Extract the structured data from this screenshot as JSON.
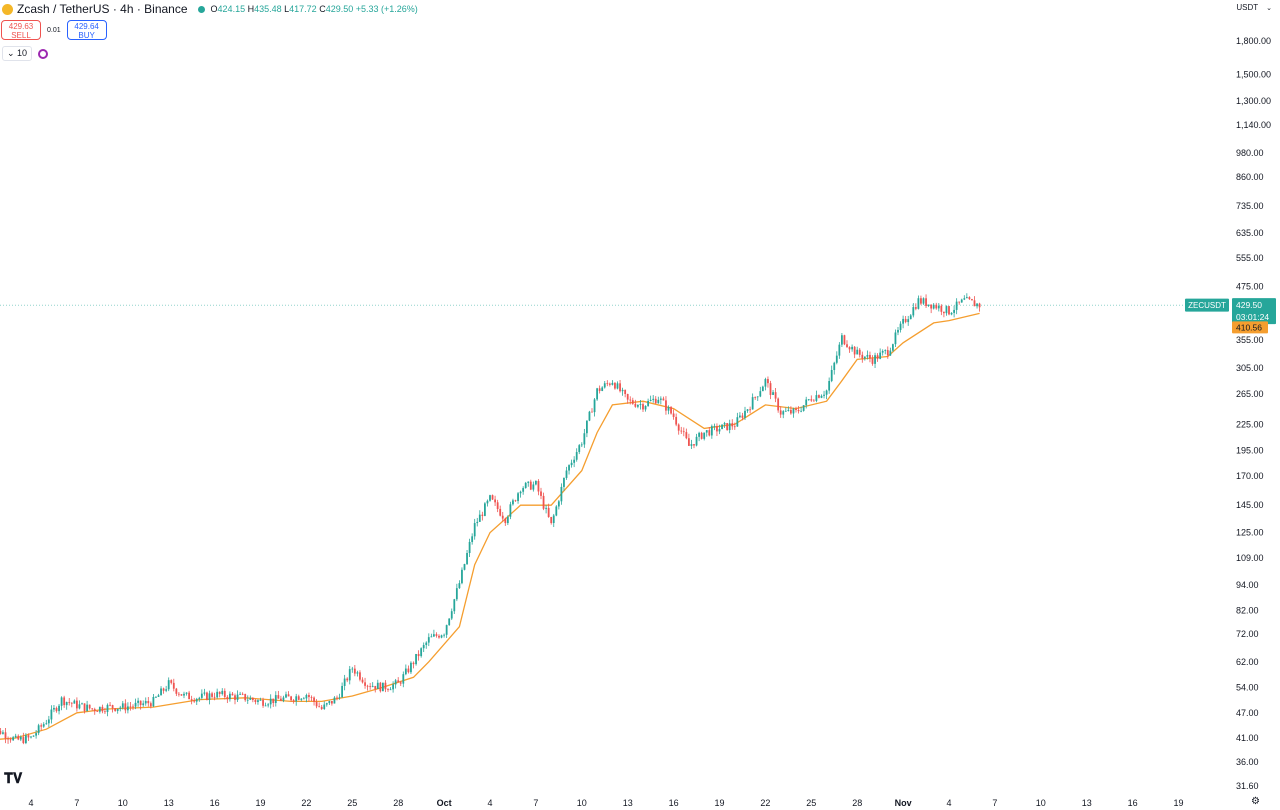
{
  "header": {
    "title": "Zcash / TetherUS · 4h · Binance",
    "ohlc": {
      "o_label": "O",
      "o": "424.15",
      "h_label": "H",
      "h": "435.48",
      "l_label": "L",
      "l": "417.72",
      "c_label": "C",
      "c": "429.50",
      "change": "+5.33 (+1.26%)"
    }
  },
  "trade": {
    "sell_price": "429.63",
    "sell_label": "SELL",
    "spread": "0.01",
    "buy_price": "429.64",
    "buy_label": "BUY"
  },
  "indicator": {
    "length": "10"
  },
  "currency_selector": {
    "label": "USDT"
  },
  "symbol_tag": "ZECUSDT",
  "price_tag": {
    "price": "429.50",
    "countdown": "03:01:24"
  },
  "ma_tag": "410.56",
  "colors": {
    "up": "#26a69a",
    "down": "#ef5350",
    "ma": "#f59e2f",
    "accent": "#2962ff"
  },
  "chart_data": {
    "type": "candlestick",
    "yscale": "log",
    "ylim": [
      31.6,
      2040
    ],
    "y_ticks": [
      "1,800.00",
      "1,500.00",
      "1,300.00",
      "1,140.00",
      "980.00",
      "860.00",
      "735.00",
      "635.00",
      "555.00",
      "475.00",
      "355.00",
      "305.00",
      "265.00",
      "225.00",
      "195.00",
      "170.00",
      "145.00",
      "125.00",
      "109.00",
      "94.00",
      "82.00",
      "72.00",
      "62.00",
      "54.00",
      "47.00",
      "41.00",
      "36.00",
      "31.60"
    ],
    "x_ticks": [
      "4",
      "7",
      "10",
      "13",
      "16",
      "19",
      "22",
      "25",
      "28",
      "Oct",
      "4",
      "7",
      "10",
      "13",
      "16",
      "19",
      "22",
      "25",
      "28",
      "Nov",
      "4",
      "7",
      "10",
      "13",
      "16",
      "19"
    ],
    "current_price": 429.5,
    "ma_last": 410.56,
    "series": [
      {
        "name": "price",
        "type": "candle",
        "points": [
          [
            "Sep 1",
            41.0
          ],
          [
            "Sep 2",
            42.5
          ],
          [
            "Sep 3",
            40.5
          ],
          [
            "Sep 4",
            41.0
          ],
          [
            "Sep 5",
            45.0
          ],
          [
            "Sep 6",
            50.5
          ],
          [
            "Sep 7",
            49.0
          ],
          [
            "Sep 8",
            48.0
          ],
          [
            "Sep 9",
            48.5
          ],
          [
            "Sep 10",
            48.5
          ],
          [
            "Sep 11",
            49.0
          ],
          [
            "Sep 12",
            50.0
          ],
          [
            "Sep 13",
            55.0
          ],
          [
            "Sep 14",
            51.5
          ],
          [
            "Sep 15",
            51.0
          ],
          [
            "Sep 16",
            52.0
          ],
          [
            "Sep 17",
            51.5
          ],
          [
            "Sep 18",
            51.0
          ],
          [
            "Sep 19",
            50.0
          ],
          [
            "Sep 20",
            50.5
          ],
          [
            "Sep 21",
            51.0
          ],
          [
            "Sep 22",
            52.0
          ],
          [
            "Sep 23",
            48.0
          ],
          [
            "Sep 24",
            51.0
          ],
          [
            "Sep 25",
            60.0
          ],
          [
            "Sep 26",
            55.0
          ],
          [
            "Sep 27",
            54.0
          ],
          [
            "Sep 28",
            55.0
          ],
          [
            "Sep 29",
            62.0
          ],
          [
            "Sep 30",
            70.0
          ],
          [
            "Oct 1",
            73.0
          ],
          [
            "Oct 2",
            95.0
          ],
          [
            "Oct 3",
            130.0
          ],
          [
            "Oct 4",
            150.0
          ],
          [
            "Oct 5",
            135.0
          ],
          [
            "Oct 6",
            160.0
          ],
          [
            "Oct 7",
            162.0
          ],
          [
            "Oct 8",
            130.0
          ],
          [
            "Oct 9",
            175.0
          ],
          [
            "Oct 10",
            205.0
          ],
          [
            "Oct 11",
            270.0
          ],
          [
            "Oct 12",
            285.0
          ],
          [
            "Oct 13",
            255.0
          ],
          [
            "Oct 14",
            250.0
          ],
          [
            "Oct 15",
            260.0
          ],
          [
            "Oct 16",
            235.0
          ],
          [
            "Oct 17",
            200.0
          ],
          [
            "Oct 18",
            215.0
          ],
          [
            "Oct 19",
            220.0
          ],
          [
            "Oct 20",
            225.0
          ],
          [
            "Oct 21",
            250.0
          ],
          [
            "Oct 22",
            285.0
          ],
          [
            "Oct 23",
            240.0
          ],
          [
            "Oct 24",
            240.0
          ],
          [
            "Oct 25",
            260.0
          ],
          [
            "Oct 26",
            270.0
          ],
          [
            "Oct 27",
            360.0
          ],
          [
            "Oct 28",
            330.0
          ],
          [
            "Oct 29",
            320.0
          ],
          [
            "Oct 30",
            335.0
          ],
          [
            "Oct 31",
            390.0
          ],
          [
            "Nov 1",
            440.0
          ],
          [
            "Nov 2",
            430.0
          ],
          [
            "Nov 3",
            415.0
          ],
          [
            "Nov 4",
            440.0
          ],
          [
            "Nov 5",
            429.5
          ]
        ]
      },
      {
        "name": "moving average",
        "type": "line",
        "points": [
          [
            "Sep 1",
            40.5
          ],
          [
            "Sep 3",
            41.0
          ],
          [
            "Sep 5",
            43.0
          ],
          [
            "Sep 7",
            47.0
          ],
          [
            "Sep 9",
            48.0
          ],
          [
            "Sep 12",
            48.5
          ],
          [
            "Sep 15",
            50.5
          ],
          [
            "Sep 18",
            51.0
          ],
          [
            "Sep 21",
            50.0
          ],
          [
            "Sep 23",
            50.0
          ],
          [
            "Sep 25",
            51.5
          ],
          [
            "Sep 27",
            54.0
          ],
          [
            "Sep 29",
            57.0
          ],
          [
            "Sep 30",
            62.0
          ],
          [
            "Oct 2",
            75.0
          ],
          [
            "Oct 3",
            105.0
          ],
          [
            "Oct 4",
            125.0
          ],
          [
            "Oct 6",
            145.0
          ],
          [
            "Oct 8",
            145.0
          ],
          [
            "Oct 10",
            175.0
          ],
          [
            "Oct 11",
            215.0
          ],
          [
            "Oct 12",
            250.0
          ],
          [
            "Oct 14",
            255.0
          ],
          [
            "Oct 16",
            245.0
          ],
          [
            "Oct 18",
            220.0
          ],
          [
            "Oct 20",
            225.0
          ],
          [
            "Oct 22",
            250.0
          ],
          [
            "Oct 24",
            245.0
          ],
          [
            "Oct 26",
            255.0
          ],
          [
            "Oct 27",
            285.0
          ],
          [
            "Oct 28",
            320.0
          ],
          [
            "Oct 30",
            325.0
          ],
          [
            "Oct 31",
            350.0
          ],
          [
            "Nov 2",
            390.0
          ],
          [
            "Nov 3",
            395.0
          ],
          [
            "Nov 5",
            410.56
          ]
        ]
      }
    ]
  }
}
